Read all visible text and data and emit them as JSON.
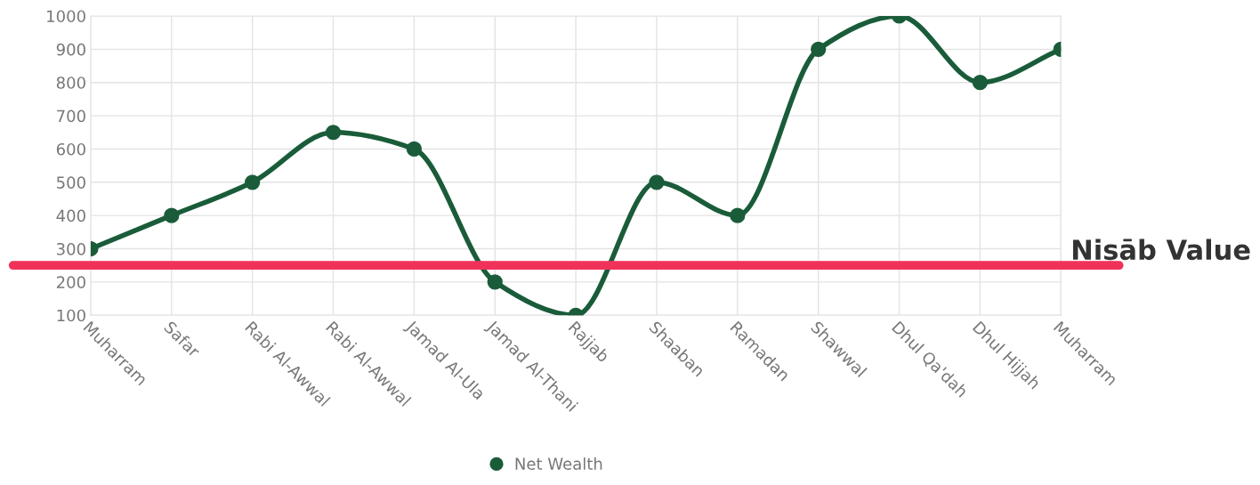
{
  "chart_data": {
    "type": "line",
    "categories": [
      "Muharram",
      "Safar",
      "Rabi Al-Awwal",
      "Rabi Al-Awwal",
      "Jamad Al-Ula",
      "Jamad Al-Thani",
      "Rajjab",
      "Shaaban",
      "Ramadan",
      "Shawwal",
      "Dhul Qa'dah",
      "Dhul Hijjah",
      "Muharram"
    ],
    "series": [
      {
        "name": "Net Wealth",
        "color": "#1a5c3a",
        "values": [
          300,
          400,
          500,
          650,
          600,
          200,
          100,
          500,
          400,
          900,
          1000,
          800,
          900
        ]
      }
    ],
    "ylim": [
      100,
      1000
    ],
    "yticks": [
      100,
      200,
      300,
      400,
      500,
      600,
      700,
      800,
      900,
      1000
    ],
    "ref_lines": [
      {
        "axis": "y",
        "value": 250,
        "label": "Niṣāb Value",
        "color": "#f0325a"
      }
    ],
    "grid": true,
    "legend": "bottom",
    "marker": "circle",
    "line_style": "solid"
  }
}
